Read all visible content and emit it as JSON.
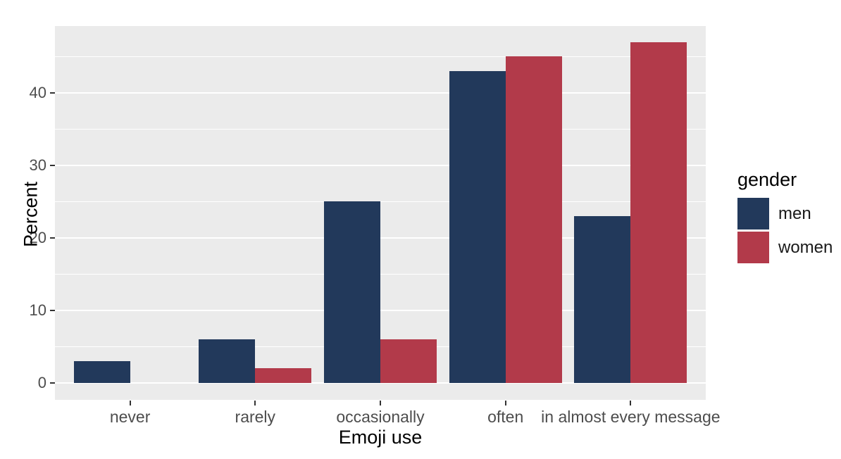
{
  "chart_data": {
    "type": "bar",
    "subtype": "grouped",
    "title": "",
    "categories": [
      "never",
      "rarely",
      "occasionally",
      "often",
      "in almost every message"
    ],
    "series": [
      {
        "name": "men",
        "color": "#22395B",
        "values": [
          3,
          6,
          25,
          43,
          23
        ]
      },
      {
        "name": "women",
        "color": "#B23A4A",
        "values": [
          0,
          2,
          6,
          45,
          47
        ]
      }
    ],
    "xlabel": "Emoji use",
    "ylabel": "Percent",
    "y_ticks": [
      0,
      10,
      20,
      30,
      40
    ],
    "y_minor_ticks": [
      5,
      15,
      25,
      35,
      45
    ],
    "ylim": [
      0,
      49.2
    ],
    "grid": true,
    "legend": {
      "title": "gender",
      "position": "right"
    },
    "style": {
      "panel_bg": "#EBEBEB",
      "grid_color": "#FFFFFF",
      "tick_label_color": "#4D4D4D",
      "axis_title_color": "#000000",
      "tick_mark_color": "#333333"
    }
  }
}
